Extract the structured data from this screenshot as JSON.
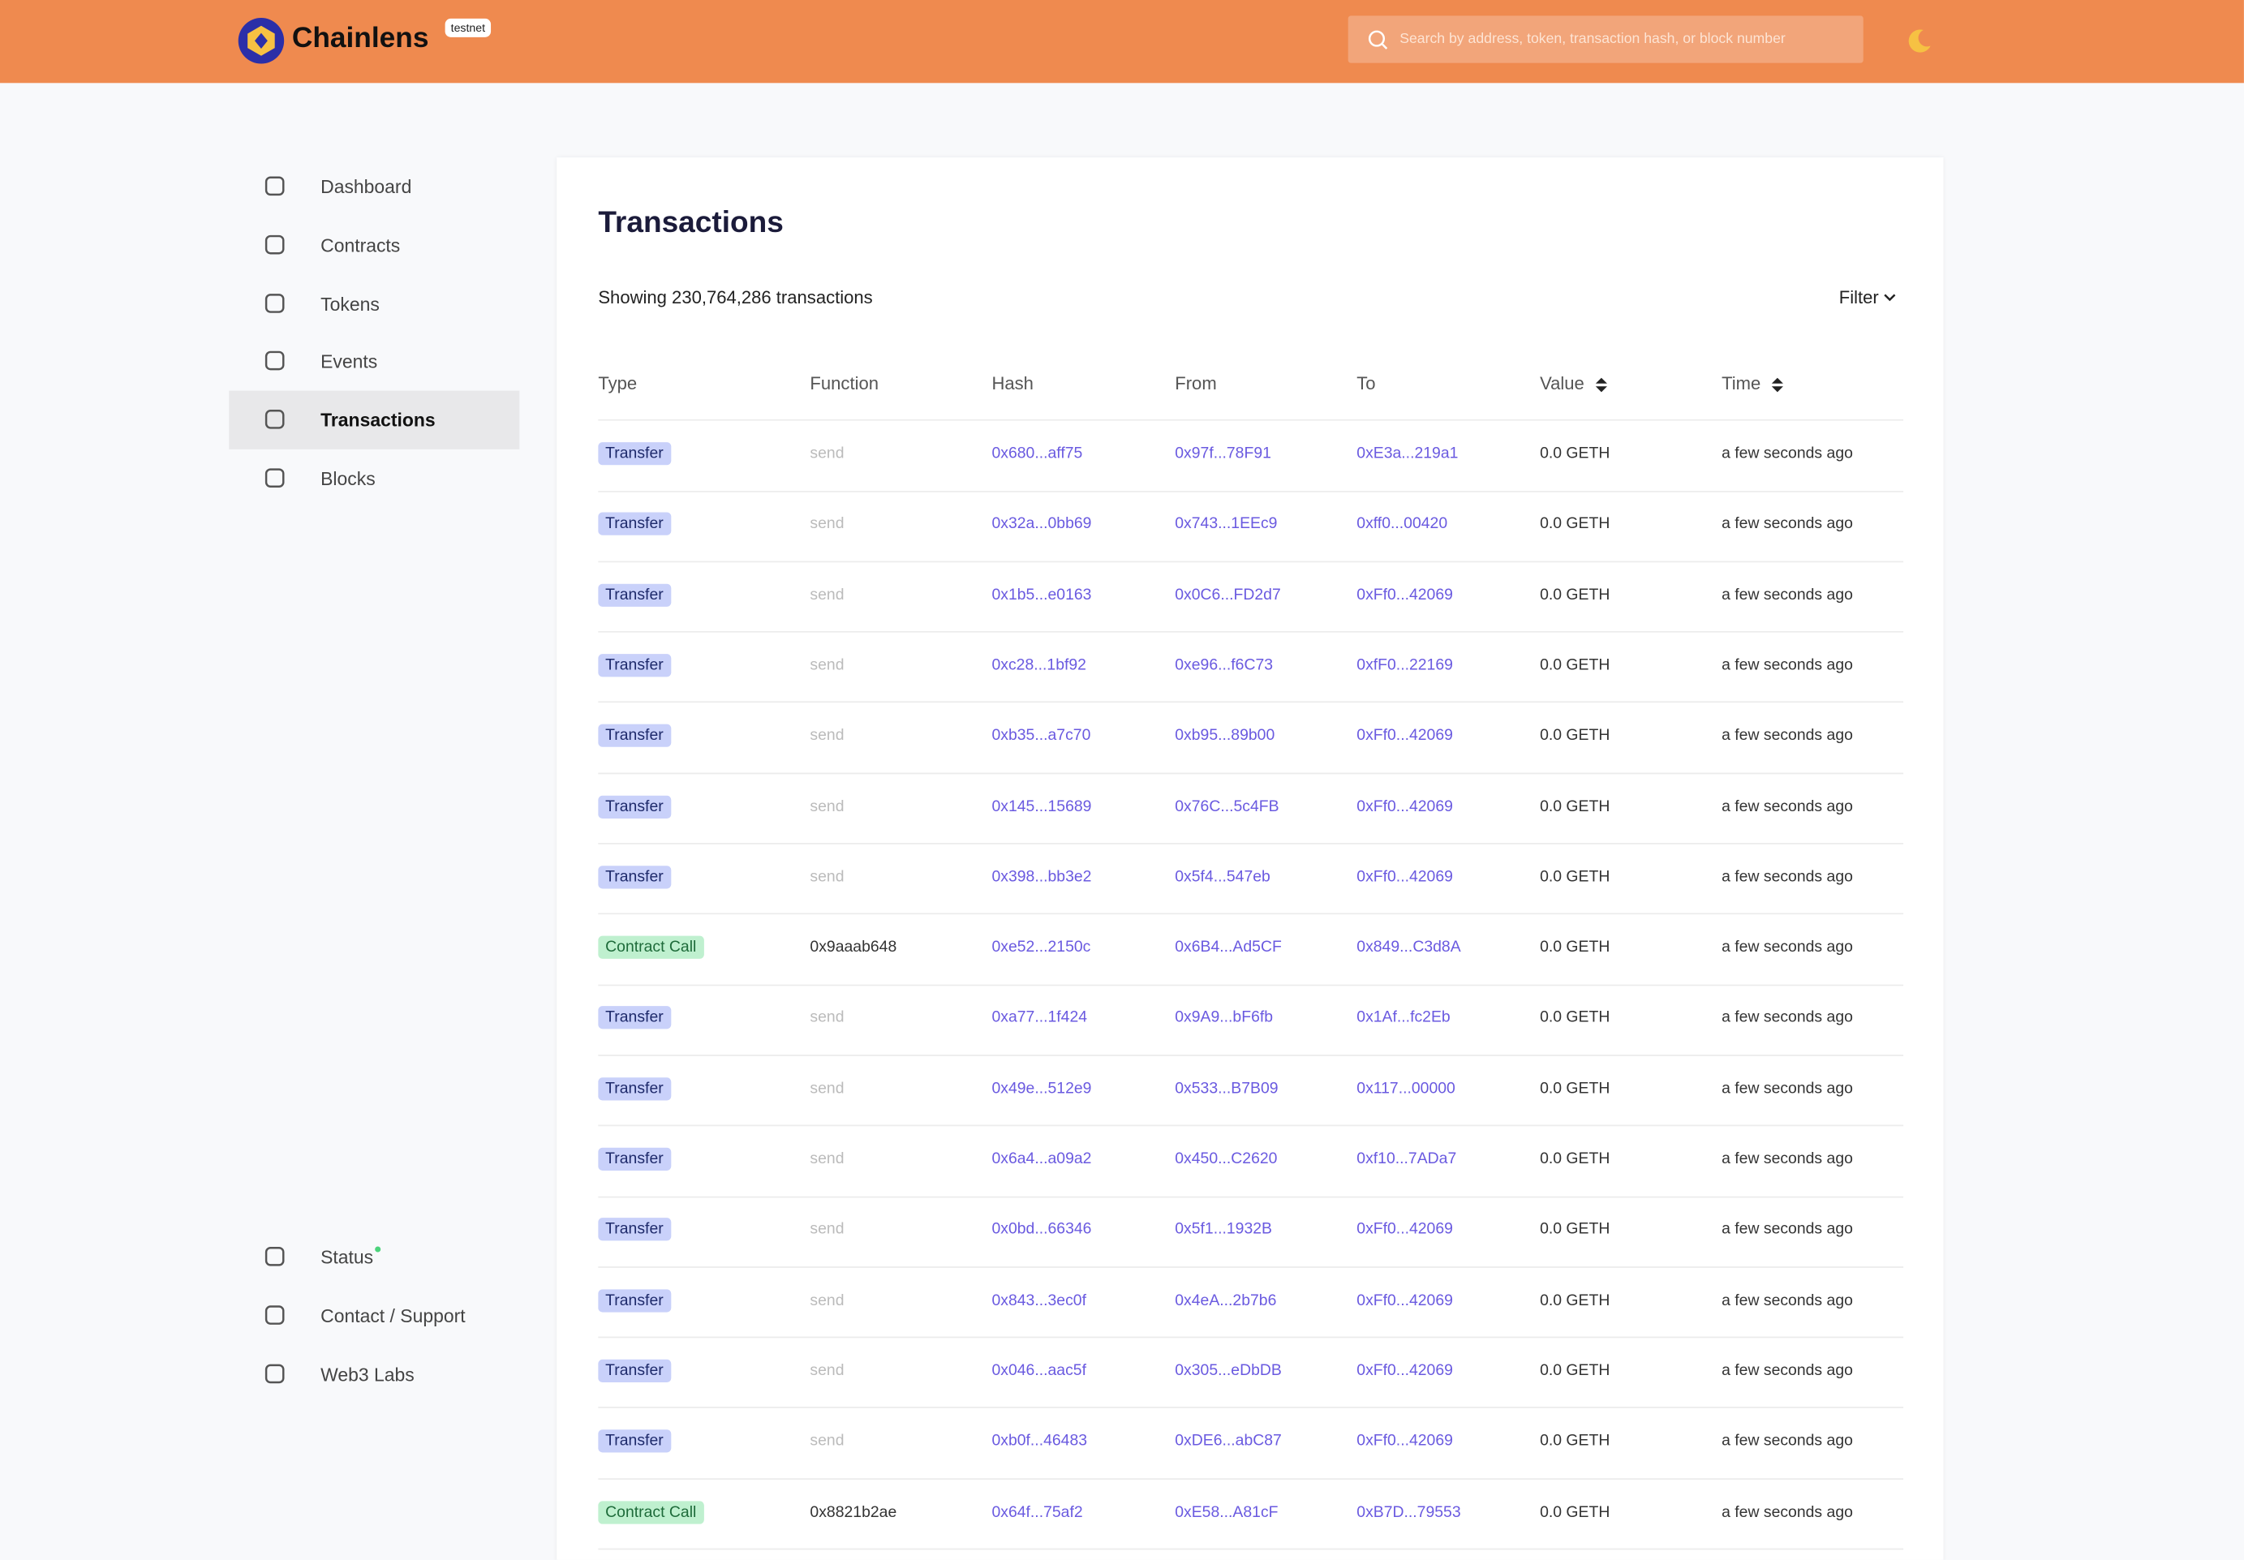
{
  "header": {
    "brand": "Chainlens",
    "badge": "testnet",
    "search_placeholder": "Search by address, token, transaction hash, or block number"
  },
  "sidebar": {
    "items": [
      "Dashboard",
      "Contracts",
      "Tokens",
      "Events",
      "Transactions",
      "Blocks"
    ],
    "active": "Transactions",
    "footer_items": [
      "Status",
      "Contact / Support",
      "Web3 Labs"
    ]
  },
  "main": {
    "title": "Transactions",
    "summary": "Showing 230,764,286 transactions",
    "filter": "Filter",
    "table": {
      "columns": [
        "Type",
        "Function",
        "Hash",
        "From",
        "To",
        "Value",
        "Time"
      ],
      "rows": [
        [
          "Transfer",
          "send",
          "0x680...aff75",
          "0x97f...78F91",
          "0xE3a...219a1",
          "0.0 GETH",
          "a few seconds ago"
        ],
        [
          "Transfer",
          "send",
          "0x32a...0bb69",
          "0x743...1EEc9",
          "0xff0...00420",
          "0.0 GETH",
          "a few seconds ago"
        ],
        [
          "Transfer",
          "send",
          "0x1b5...e0163",
          "0x0C6...FD2d7",
          "0xFf0...42069",
          "0.0 GETH",
          "a few seconds ago"
        ],
        [
          "Transfer",
          "send",
          "0xc28...1bf92",
          "0xe96...f6C73",
          "0xfF0...22169",
          "0.0 GETH",
          "a few seconds ago"
        ],
        [
          "Transfer",
          "send",
          "0xb35...a7c70",
          "0xb95...89b00",
          "0xFf0...42069",
          "0.0 GETH",
          "a few seconds ago"
        ],
        [
          "Transfer",
          "send",
          "0x145...15689",
          "0x76C...5c4FB",
          "0xFf0...42069",
          "0.0 GETH",
          "a few seconds ago"
        ],
        [
          "Transfer",
          "send",
          "0x398...bb3e2",
          "0x5f4...547eb",
          "0xFf0...42069",
          "0.0 GETH",
          "a few seconds ago"
        ],
        [
          "Contract Call",
          "0x9aaab648",
          "0xe52...2150c",
          "0x6B4...Ad5CF",
          "0x849...C3d8A",
          "0.0 GETH",
          "a few seconds ago"
        ],
        [
          "Transfer",
          "send",
          "0xa77...1f424",
          "0x9A9...bF6fb",
          "0x1Af...fc2Eb",
          "0.0 GETH",
          "a few seconds ago"
        ],
        [
          "Transfer",
          "send",
          "0x49e...512e9",
          "0x533...B7B09",
          "0x117...00000",
          "0.0 GETH",
          "a few seconds ago"
        ],
        [
          "Transfer",
          "send",
          "0x6a4...a09a2",
          "0x450...C2620",
          "0xf10...7ADa7",
          "0.0 GETH",
          "a few seconds ago"
        ],
        [
          "Transfer",
          "send",
          "0x0bd...66346",
          "0x5f1...1932B",
          "0xFf0...42069",
          "0.0 GETH",
          "a few seconds ago"
        ],
        [
          "Transfer",
          "send",
          "0x843...3ec0f",
          "0x4eA...2b7b6",
          "0xFf0...42069",
          "0.0 GETH",
          "a few seconds ago"
        ],
        [
          "Transfer",
          "send",
          "0x046...aac5f",
          "0x305...eDbDB",
          "0xFf0...42069",
          "0.0 GETH",
          "a few seconds ago"
        ],
        [
          "Transfer",
          "send",
          "0xb0f...46483",
          "0xDE6...abC87",
          "0xFf0...42069",
          "0.0 GETH",
          "a few seconds ago"
        ],
        [
          "Contract Call",
          "0x8821b2ae",
          "0x64f...75af2",
          "0xE58...A81cF",
          "0xB7D...79553",
          "0.0 GETH",
          "a few seconds ago"
        ]
      ]
    }
  }
}
